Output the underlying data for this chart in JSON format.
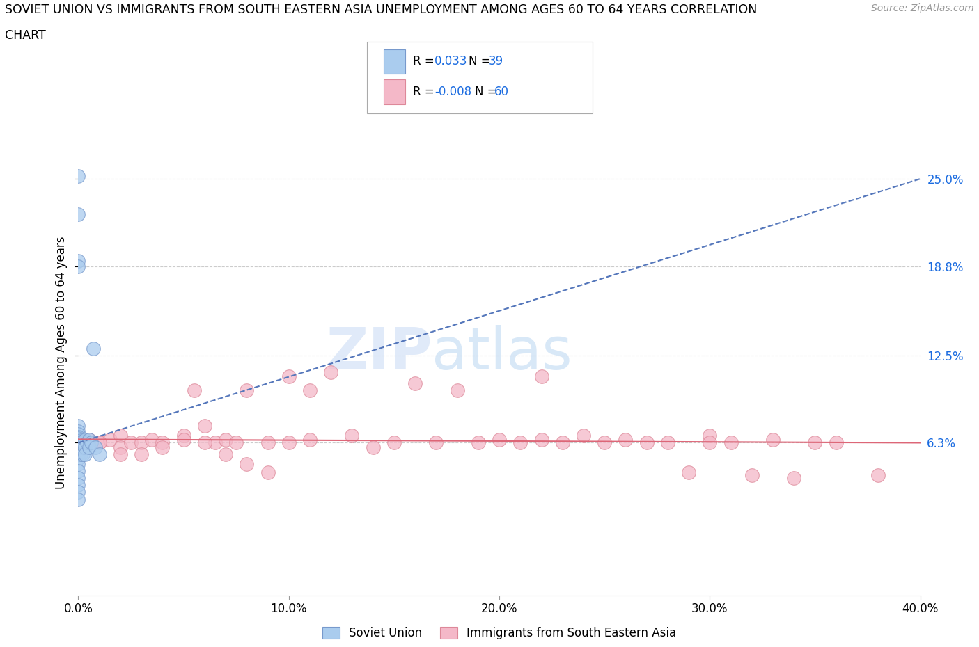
{
  "title_line1": "SOVIET UNION VS IMMIGRANTS FROM SOUTH EASTERN ASIA UNEMPLOYMENT AMONG AGES 60 TO 64 YEARS CORRELATION",
  "title_line2": "CHART",
  "source_text": "Source: ZipAtlas.com",
  "ylabel": "Unemployment Among Ages 60 to 64 years",
  "watermark_ZIP": "ZIP",
  "watermark_atlas": "atlas",
  "xlim": [
    0.0,
    0.4
  ],
  "ylim": [
    -0.045,
    0.285
  ],
  "yticks": [
    0.063,
    0.125,
    0.188,
    0.25
  ],
  "ytick_labels": [
    "6.3%",
    "12.5%",
    "18.8%",
    "25.0%"
  ],
  "xticks": [
    0.0,
    0.1,
    0.2,
    0.3,
    0.4
  ],
  "xtick_labels": [
    "0.0%",
    "10.0%",
    "20.0%",
    "30.0%",
    "40.0%"
  ],
  "grid_color": "#cccccc",
  "background_color": "#ffffff",
  "soviet_color": "#aaccee",
  "soviet_edge_color": "#7799cc",
  "soviet_line_color": "#5577bb",
  "immigrants_color": "#f4b8c8",
  "immigrants_edge_color": "#dd8899",
  "immigrants_line_color": "#dd6677",
  "tick_color_blue": "#1a6be0",
  "soviet_x": [
    0.0,
    0.0,
    0.0,
    0.0,
    0.0,
    0.0,
    0.0,
    0.0,
    0.0,
    0.0,
    0.0,
    0.0,
    0.0,
    0.0,
    0.0,
    0.0,
    0.0,
    0.0,
    0.0,
    0.0,
    0.0,
    0.0,
    0.0,
    0.001,
    0.001,
    0.001,
    0.002,
    0.002,
    0.002,
    0.003,
    0.003,
    0.003,
    0.004,
    0.005,
    0.005,
    0.006,
    0.007,
    0.008,
    0.01
  ],
  "soviet_y": [
    0.252,
    0.225,
    0.192,
    0.188,
    0.075,
    0.071,
    0.069,
    0.067,
    0.066,
    0.065,
    0.064,
    0.063,
    0.062,
    0.06,
    0.058,
    0.055,
    0.052,
    0.048,
    0.043,
    0.038,
    0.033,
    0.028,
    0.023,
    0.063,
    0.06,
    0.055,
    0.063,
    0.06,
    0.055,
    0.065,
    0.06,
    0.055,
    0.063,
    0.065,
    0.06,
    0.063,
    0.13,
    0.06,
    0.055
  ],
  "immigrants_x": [
    0.0,
    0.005,
    0.01,
    0.015,
    0.02,
    0.02,
    0.025,
    0.03,
    0.035,
    0.04,
    0.05,
    0.055,
    0.06,
    0.065,
    0.07,
    0.075,
    0.08,
    0.09,
    0.1,
    0.1,
    0.11,
    0.11,
    0.12,
    0.13,
    0.14,
    0.15,
    0.16,
    0.17,
    0.18,
    0.19,
    0.2,
    0.21,
    0.22,
    0.22,
    0.23,
    0.24,
    0.25,
    0.26,
    0.27,
    0.28,
    0.29,
    0.3,
    0.3,
    0.31,
    0.32,
    0.33,
    0.34,
    0.35,
    0.36,
    0.38,
    0.0,
    0.01,
    0.02,
    0.03,
    0.04,
    0.05,
    0.06,
    0.07,
    0.08,
    0.09
  ],
  "immigrants_y": [
    0.063,
    0.065,
    0.063,
    0.065,
    0.068,
    0.06,
    0.063,
    0.063,
    0.065,
    0.063,
    0.068,
    0.1,
    0.075,
    0.063,
    0.065,
    0.063,
    0.1,
    0.063,
    0.11,
    0.063,
    0.1,
    0.065,
    0.113,
    0.068,
    0.06,
    0.063,
    0.105,
    0.063,
    0.1,
    0.063,
    0.065,
    0.063,
    0.11,
    0.065,
    0.063,
    0.068,
    0.063,
    0.065,
    0.063,
    0.063,
    0.042,
    0.068,
    0.063,
    0.063,
    0.04,
    0.065,
    0.038,
    0.063,
    0.063,
    0.04,
    0.06,
    0.063,
    0.055,
    0.055,
    0.06,
    0.065,
    0.063,
    0.055,
    0.048,
    0.042
  ],
  "soviet_trendline_x": [
    0.0,
    0.4
  ],
  "soviet_trendline_y": [
    0.063,
    0.25
  ],
  "immigrants_trendline_x": [
    0.0,
    0.4
  ],
  "immigrants_trendline_y": [
    0.0655,
    0.063
  ]
}
